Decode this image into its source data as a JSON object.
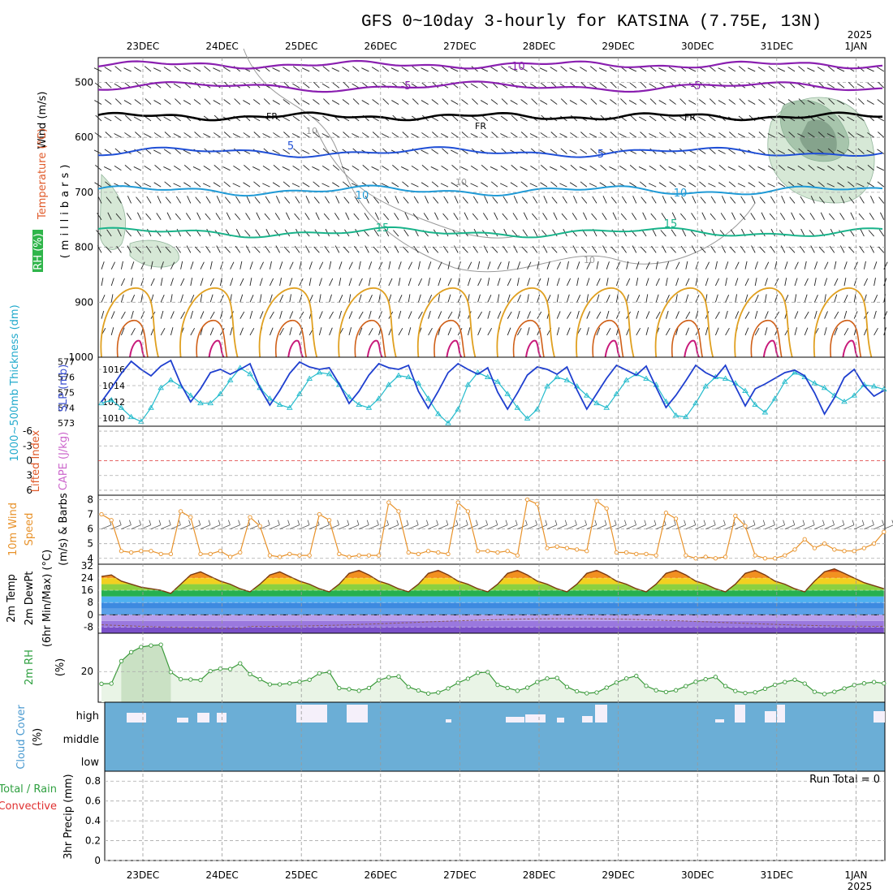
{
  "header": {
    "title": "GFS 0~10day 3-hourly for KATSINA (7.75E, 13N)",
    "year_top": "2025",
    "year_bottom": "2025"
  },
  "dates": [
    "23DEC",
    "24DEC",
    "25DEC",
    "26DEC",
    "27DEC",
    "28DEC",
    "29DEC",
    "30DEC",
    "31DEC",
    "1JAN"
  ],
  "colors": {
    "grid": "#aaaaaa",
    "zero_line": "#dd3333",
    "slp": "#1f3fcf",
    "thickness": "#22bbcc",
    "wind10": "#e8922a",
    "temp": "#7a3a10",
    "dewpt": "#8a5a5a",
    "rh2m": "#3a9a3a",
    "rh2m_fill": "#e9f4e6",
    "cloud_fill": "#6baed6",
    "cloud_cut": "#f5f0fa",
    "frz_level": "#000000",
    "neg10": "#8a1fb0",
    "pos5": "#1f4fd6",
    "pos10": "#1f9ad6",
    "pos15": "#19b38a",
    "rh_fill": "#cfe5cf",
    "rh_contour": "#999999",
    "temp_warm1": "#e0a020",
    "temp_warm2": "#d06018",
    "temp_warm3": "#c81a7a"
  },
  "upper_panel": {
    "ylabel_wind": "Wind (m/s)",
    "ylabel_temp": "Temperature (°C)",
    "ylabel_rh": "RH (%)",
    "ylabel_units": "(millibars)",
    "pressure_ticks": [
      "500",
      "600",
      "700",
      "800",
      "900",
      "1000"
    ],
    "contour_labels": [
      "-10",
      "-5",
      "-5",
      "FR",
      "FR",
      "FR",
      "5",
      "5",
      "10",
      "10",
      "15",
      "15",
      "10",
      "10",
      "10"
    ]
  },
  "slp_panel": {
    "ylabel_thick": "1000~500mb Thickness (dm)",
    "ylabel_slp": "SLP (mb)",
    "thick_ticks": [
      "577",
      "576",
      "575",
      "574",
      "573"
    ],
    "slp_ticks": [
      "1016",
      "1014",
      "1012",
      "1010"
    ]
  },
  "li_panel": {
    "ylabel_li": "Lifted Index",
    "ylabel_cape": "CAPE (J/kg)",
    "ticks": [
      "-6",
      "-3",
      "0",
      "3",
      "6"
    ]
  },
  "wind10_panel": {
    "ylabel1": "10m Wind",
    "ylabel2": "Speed",
    "ylabel3": "(m/s) & Barbs",
    "ticks": [
      "8",
      "7",
      "6",
      "5",
      "4"
    ]
  },
  "temp_panel": {
    "ylabel1": "2m Temp",
    "ylabel2": "2m DewPt",
    "ylabel3": "(6hr Min/Max) (°C)",
    "ticks": [
      "32",
      "24",
      "16",
      "8",
      "0",
      "-8"
    ]
  },
  "rh_panel": {
    "ylabel1": "2m RH",
    "ylabel2": "(%)",
    "ticks": [
      "20"
    ]
  },
  "cloud_panel": {
    "ylabel1": "Cloud Cover",
    "ylabel2": "(%)",
    "levels": [
      "high",
      "middle",
      "low"
    ]
  },
  "precip_panel": {
    "ylabel_total": "Total / Rain",
    "ylabel_conv": "Convective",
    "ylabel_units": "3hr Precip (mm)",
    "ticks": [
      "0.8",
      "0.6",
      "0.4",
      "0.2",
      "0"
    ],
    "run_total": "Run Total = 0"
  },
  "chart_data": [
    {
      "type": "line",
      "name": "Sea level pressure",
      "ylabel": "SLP (mb)",
      "ylim": [
        1009,
        1017.5
      ],
      "x_start": "22DEC 12Z",
      "x_step_hours": 3,
      "values": [
        1012.0,
        1013.7,
        1015.5,
        1017.0,
        1016.0,
        1015.2,
        1016.4,
        1017.1,
        1014.2,
        1012.0,
        1013.6,
        1015.6,
        1016.0,
        1015.4,
        1016.0,
        1016.7,
        1013.7,
        1011.6,
        1013.4,
        1015.5,
        1016.9,
        1016.3,
        1016.0,
        1016.2,
        1014.2,
        1011.8,
        1013.3,
        1015.3,
        1016.7,
        1016.2,
        1016.0,
        1016.5,
        1013.3,
        1011.2,
        1013.3,
        1015.6,
        1016.7,
        1016.0,
        1015.4,
        1016.2,
        1013.2,
        1011.1,
        1013.1,
        1015.3,
        1016.3,
        1016.0,
        1015.4,
        1016.3,
        1013.5,
        1011.1,
        1013.0,
        1014.9,
        1016.5,
        1015.9,
        1015.3,
        1016.4,
        1013.8,
        1011.3,
        1012.8,
        1014.6,
        1016.5,
        1015.6,
        1015.0,
        1016.5,
        1013.9,
        1011.5,
        1013.6,
        1014.2,
        1014.9,
        1015.6,
        1015.9,
        1015.2,
        1013.1,
        1010.5,
        1012.5,
        1015.0,
        1016.0,
        1014.0,
        1012.7,
        1013.4
      ]
    },
    {
      "type": "line",
      "name": "1000~500mb thickness",
      "ylabel": "Thickness (dm)",
      "ylim": [
        572.8,
        577.3
      ],
      "x_start": "22DEC 12Z",
      "x_step_hours": 3,
      "values": [
        574.3,
        574.5,
        574.0,
        573.4,
        573.1,
        574.0,
        575.3,
        575.8,
        575.4,
        574.8,
        574.3,
        574.3,
        574.9,
        575.8,
        576.6,
        576.2,
        575.3,
        574.6,
        574.2,
        574.0,
        574.9,
        575.9,
        576.3,
        576.2,
        575.5,
        574.7,
        574.2,
        574.0,
        574.6,
        575.5,
        576.1,
        576.0,
        575.6,
        574.6,
        573.6,
        573.0,
        573.9,
        575.5,
        576.3,
        576.0,
        575.7,
        574.9,
        574.0,
        573.3,
        573.9,
        575.4,
        576.0,
        575.8,
        575.4,
        574.8,
        574.3,
        574.0,
        574.9,
        575.8,
        576.2,
        575.9,
        575.5,
        574.4,
        573.5,
        573.4,
        574.3,
        575.4,
        576.0,
        575.9,
        575.6,
        575.1,
        574.2,
        573.7,
        574.6,
        575.7,
        576.3,
        576.0,
        575.6,
        575.3,
        574.8,
        574.4,
        574.8,
        575.5,
        575.4,
        575.2
      ]
    },
    {
      "type": "line",
      "name": "10m wind speed",
      "ylabel": "m/s",
      "ylim": [
        3.6,
        8.3
      ],
      "x_start": "22DEC 12Z",
      "x_step_hours": 3,
      "values": [
        7.0,
        6.6,
        4.5,
        4.4,
        4.5,
        4.5,
        4.3,
        4.3,
        7.2,
        6.8,
        4.3,
        4.3,
        4.5,
        4.1,
        4.4,
        6.8,
        6.2,
        4.2,
        4.1,
        4.3,
        4.2,
        4.2,
        7.0,
        6.6,
        4.3,
        4.1,
        4.2,
        4.2,
        4.2,
        7.8,
        7.2,
        4.4,
        4.3,
        4.5,
        4.4,
        4.3,
        7.8,
        7.2,
        4.5,
        4.5,
        4.4,
        4.5,
        4.2,
        8.0,
        7.7,
        4.7,
        4.8,
        4.7,
        4.6,
        4.5,
        7.9,
        7.4,
        4.4,
        4.4,
        4.3,
        4.3,
        4.2,
        7.1,
        6.7,
        4.2,
        4.0,
        4.1,
        4.0,
        4.1,
        6.9,
        6.2,
        4.2,
        4.0,
        4.0,
        4.2,
        4.6,
        5.3,
        4.7,
        5.0,
        4.6,
        4.5,
        4.5,
        4.7,
        5.0,
        5.8
      ]
    },
    {
      "type": "line",
      "name": "2m RH",
      "ylabel": "%",
      "ylim": [
        8,
        35
      ],
      "x_start": "22DEC 12Z",
      "x_step_hours": 3,
      "values": [
        15.2,
        15.3,
        24.1,
        27.6,
        29.6,
        30.2,
        30.5,
        19.8,
        17.0,
        16.9,
        16.7,
        20.2,
        21.1,
        21.0,
        23.2,
        19.0,
        17.0,
        15.0,
        15.0,
        15.4,
        16.0,
        16.8,
        19.3,
        19.8,
        13.5,
        13.1,
        12.5,
        13.6,
        16.6,
        17.8,
        18.1,
        14.0,
        12.6,
        11.4,
        11.8,
        13.4,
        15.6,
        17.2,
        19.5,
        19.8,
        14.8,
        13.6,
        12.5,
        13.7,
        15.9,
        17.3,
        17.5,
        14.0,
        12.3,
        11.5,
        11.8,
        13.7,
        15.7,
        17.3,
        18.3,
        14.4,
        12.7,
        12.0,
        12.7,
        14.3,
        16.0,
        17.0,
        17.9,
        14.3,
        12.4,
        11.6,
        11.9,
        13.3,
        14.8,
        15.9,
        16.8,
        15.3,
        12.1,
        11.2,
        12.1,
        13.4,
        14.7,
        15.4,
        15.9,
        15.4
      ]
    },
    {
      "type": "area",
      "name": "2m temperature",
      "ylabel": "°C",
      "ylim": [
        -12,
        33
      ],
      "x_start": "22DEC 12Z",
      "x_step_hours": 3,
      "values": [
        25,
        26,
        22,
        20,
        18,
        17,
        16,
        14,
        20,
        26,
        28,
        25,
        22,
        20,
        17,
        15,
        20,
        26,
        28,
        25,
        22,
        20,
        17,
        15,
        20,
        27,
        29,
        26,
        22,
        20,
        17,
        15,
        20,
        27,
        29,
        26,
        22,
        20,
        17,
        15,
        20,
        27,
        29,
        26,
        22,
        20,
        17,
        15,
        20,
        27,
        29,
        26,
        22,
        20,
        17,
        15,
        20,
        27,
        29,
        26,
        22,
        20,
        17,
        15,
        20,
        27,
        29,
        26,
        22,
        20,
        17,
        15,
        22,
        28,
        30,
        27,
        24,
        21,
        19,
        17
      ]
    }
  ]
}
